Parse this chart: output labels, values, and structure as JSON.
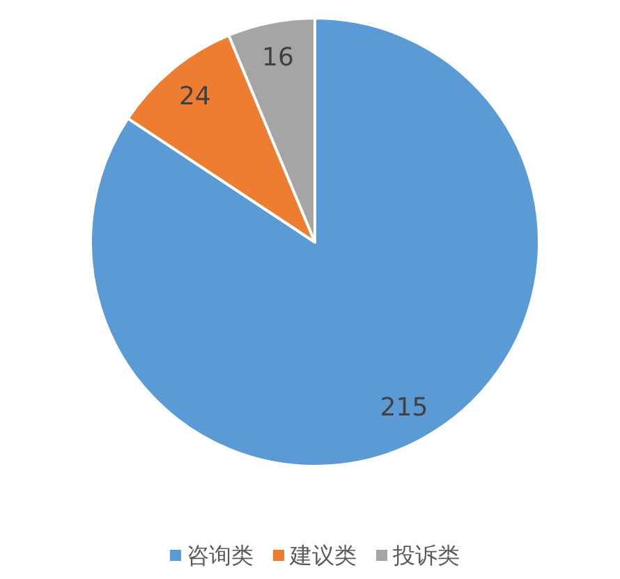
{
  "chart_data": {
    "type": "pie",
    "categories": [
      "咨询类",
      "建议类",
      "投诉类"
    ],
    "values": [
      215,
      24,
      16
    ],
    "colors": [
      "#5b9bd5",
      "#ed7d31",
      "#a5a5a5"
    ],
    "data_labels": true,
    "legend": "bottom"
  }
}
